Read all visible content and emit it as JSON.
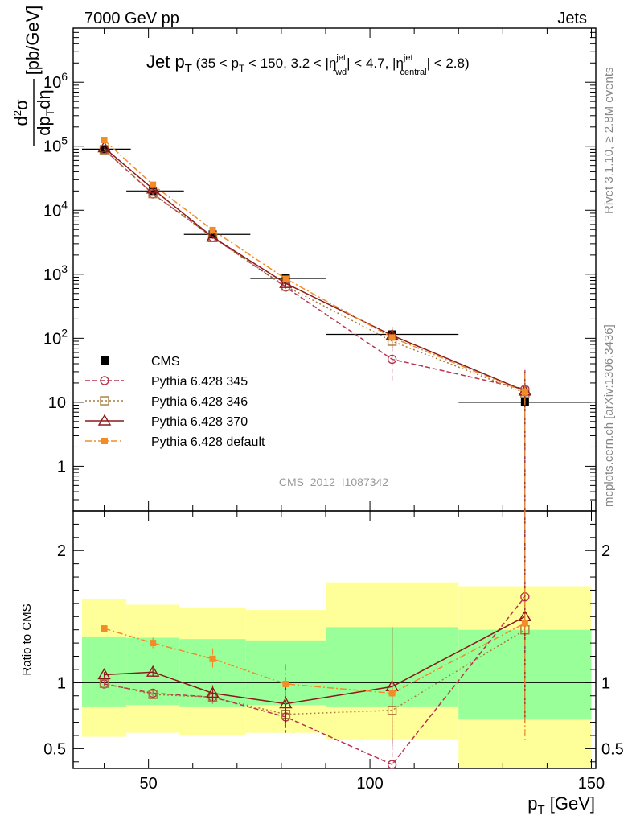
{
  "header": {
    "left": "7000 GeV pp",
    "right": "Jets"
  },
  "side": {
    "rivet": "Rivet 3.1.10, ≥ 2.8M events",
    "mcplots": "mcplots.cern.ch [arXiv:1306.3436]"
  },
  "watermark": "CMS_2012_I1087342",
  "title": {
    "main": "Jet p",
    "main_sub": "T",
    "cuts": "(35 < p_T < 150, 3.2 < |η^jet_fwd| < 4.7, |η^jet_central| < 2.8)"
  },
  "ylabel": "d²σ/dp_T dη [pb/GeV]",
  "ratio_ylabel": "Ratio to CMS",
  "xlabel": "p_T [GeV]",
  "colors": {
    "cms": "#000000",
    "p345": "#b8334f",
    "p346": "#a67c3c",
    "p370": "#8b1a1a",
    "default": "#f28c28",
    "band_inner": "#99ff99",
    "band_outer": "#ffff99"
  },
  "chart_data": [
    {
      "type": "scatter",
      "xlim": [
        33,
        151
      ],
      "ylim": [
        0.2,
        7000000
      ],
      "yscale": "log",
      "yticks": [
        1,
        10,
        100,
        1000,
        10000,
        100000,
        1000000
      ],
      "ytick_labels": [
        "1",
        "10",
        "10^2",
        "10^3",
        "10^4",
        "10^5",
        "10^6"
      ],
      "legend": "left-middle",
      "series": [
        {
          "name": "CMS",
          "style": "data",
          "x": [
            40,
            51,
            64.5,
            81,
            105,
            135
          ],
          "xerr": [
            [
              5,
              6
            ],
            [
              6,
              7
            ],
            [
              6.5,
              8.5
            ],
            [
              8,
              9
            ],
            [
              15,
              15
            ],
            [
              15,
              15
            ]
          ],
          "y": [
            90000,
            20000,
            4200,
            860,
            115,
            10
          ]
        },
        {
          "name": "Pythia 6.428 345",
          "style": "p345",
          "x": [
            40,
            51,
            64.5,
            81,
            105,
            135
          ],
          "y": [
            89000,
            18000,
            3800,
            630,
            47,
            16
          ],
          "yerr": [
            2000,
            700,
            200,
            80,
            27,
            16
          ]
        },
        {
          "name": "Pythia 6.428 346",
          "style": "p346",
          "x": [
            40,
            51,
            64.5,
            81,
            105,
            135
          ],
          "y": [
            88000,
            18200,
            3750,
            650,
            90,
            14
          ],
          "yerr": [
            2000,
            700,
            200,
            80,
            30,
            14
          ]
        },
        {
          "name": "Pythia 6.428 370",
          "style": "p370",
          "x": [
            40,
            51,
            64.5,
            81,
            105,
            135
          ],
          "y": [
            95000,
            21500,
            3800,
            720,
            111,
            15
          ],
          "yerr": [
            2000,
            700,
            200,
            80,
            40,
            15
          ]
        },
        {
          "name": "Pythia 6.428 default",
          "style": "default",
          "x": [
            40,
            51,
            64.5,
            81,
            105,
            135
          ],
          "y": [
            125000,
            25000,
            4900,
            850,
            103,
            14.5
          ],
          "yerr": [
            2000,
            700,
            200,
            80,
            30,
            14.5
          ]
        }
      ]
    },
    {
      "type": "scatter",
      "xlim": [
        33,
        151
      ],
      "ylim": [
        0.35,
        2.3
      ],
      "xticks": [
        50,
        100,
        150
      ],
      "yticks": [
        0.5,
        1,
        2
      ],
      "ytick_labels": [
        "0.5",
        "1",
        "2"
      ],
      "bands": [
        {
          "x0": 35,
          "x1": 45,
          "inner": [
            0.82,
            1.35
          ],
          "outer": [
            0.59,
            1.63
          ]
        },
        {
          "x0": 45,
          "x1": 57,
          "inner": [
            0.83,
            1.34
          ],
          "outer": [
            0.62,
            1.59
          ]
        },
        {
          "x0": 57,
          "x1": 72,
          "inner": [
            0.82,
            1.33
          ],
          "outer": [
            0.6,
            1.57
          ]
        },
        {
          "x0": 72,
          "x1": 90,
          "inner": [
            0.83,
            1.32
          ],
          "outer": [
            0.62,
            1.55
          ]
        },
        {
          "x0": 90,
          "x1": 120,
          "inner": [
            0.82,
            1.42
          ],
          "outer": [
            0.57,
            1.76
          ]
        },
        {
          "x0": 120,
          "x1": 150,
          "inner": [
            0.72,
            1.4
          ],
          "outer": [
            0.3,
            1.73
          ]
        }
      ],
      "series": [
        {
          "name": "Pythia 6.428 345",
          "style": "p345",
          "x": [
            40,
            51,
            64.5,
            81,
            105,
            135
          ],
          "y": [
            0.99,
            0.92,
            0.89,
            0.74,
            0.38,
            1.65
          ],
          "yerr": [
            0.02,
            0.03,
            0.05,
            0.12,
            0.2,
            0.8
          ]
        },
        {
          "name": "Pythia 6.428 346",
          "style": "p346",
          "x": [
            40,
            51,
            64.5,
            81,
            105,
            135
          ],
          "y": [
            0.995,
            0.91,
            0.89,
            0.76,
            0.79,
            1.4
          ],
          "yerr": [
            0.02,
            0.03,
            0.05,
            0.12,
            0.25,
            0.8
          ]
        },
        {
          "name": "Pythia 6.428 370",
          "style": "p370",
          "x": [
            40,
            51,
            64.5,
            81,
            105,
            135
          ],
          "y": [
            1.06,
            1.08,
            0.92,
            0.84,
            0.97,
            1.5
          ],
          "yerr": [
            0.02,
            0.03,
            0.06,
            0.15,
            0.45,
            0.8
          ]
        },
        {
          "name": "Pythia 6.428 default",
          "style": "default",
          "x": [
            40,
            51,
            64.5,
            81,
            105,
            135
          ],
          "y": [
            1.41,
            1.3,
            1.18,
            0.99,
            0.92,
            1.45
          ],
          "yerr": [
            0.02,
            0.04,
            0.08,
            0.15,
            0.3,
            0.9
          ]
        }
      ]
    }
  ]
}
